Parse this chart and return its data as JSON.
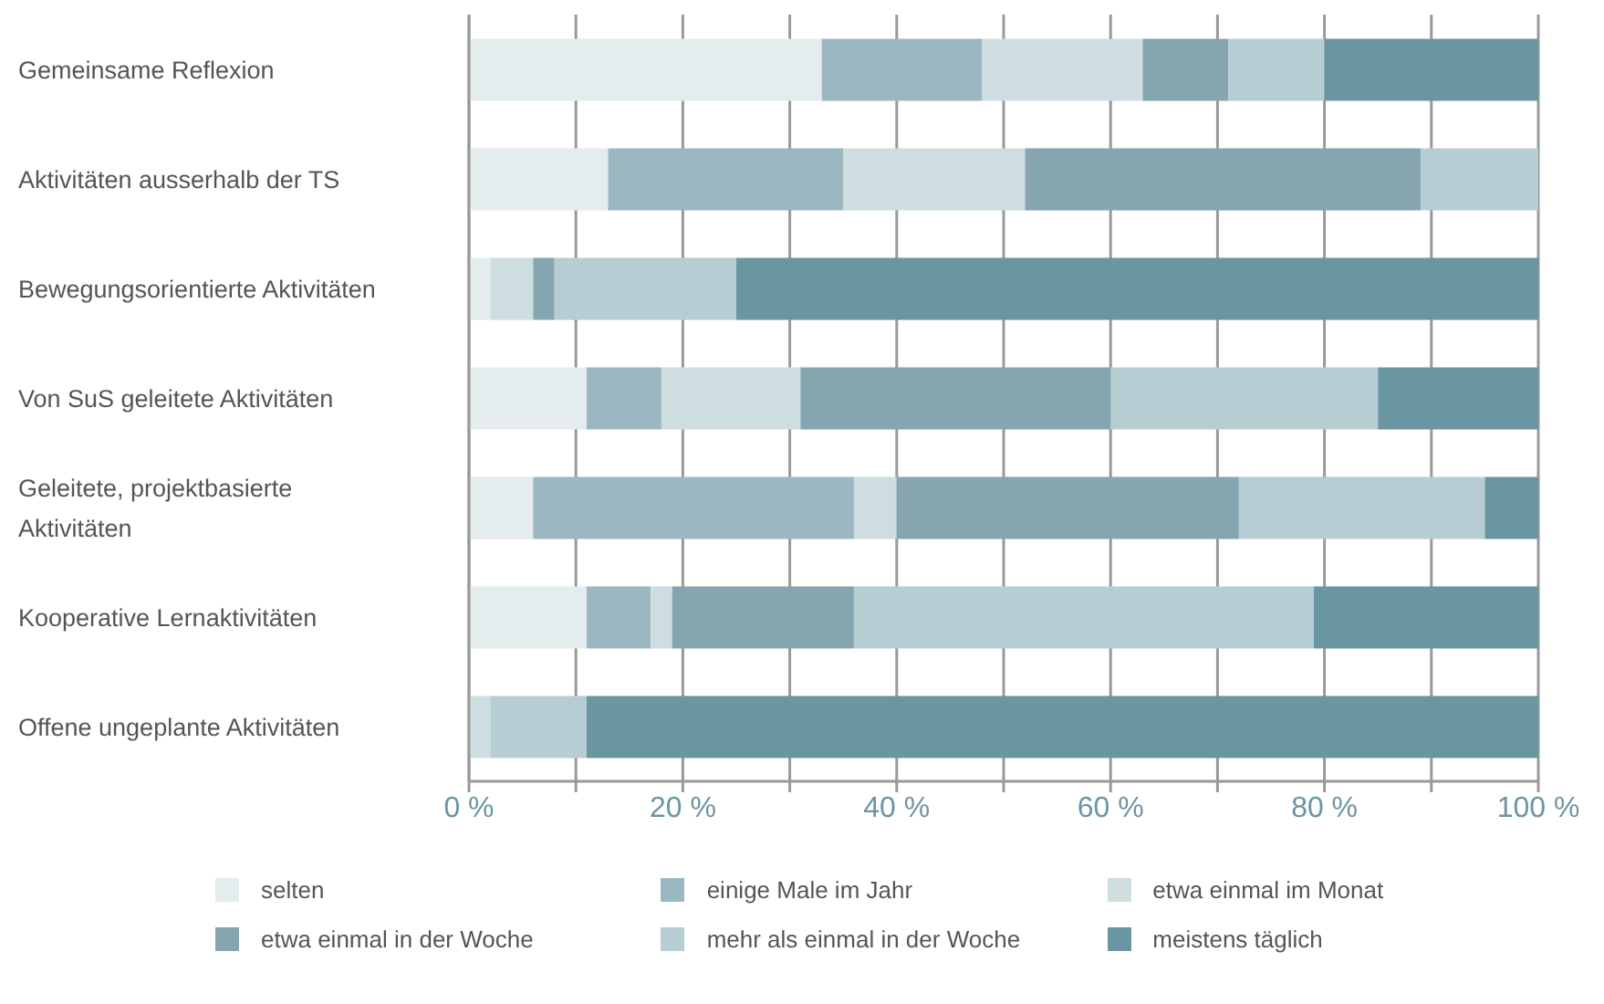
{
  "chart_data": {
    "type": "bar",
    "orientation": "horizontal",
    "stacked": true,
    "categories": [
      "Gemeinsame Reflexion",
      "Aktivitäten ausserhalb der TS",
      "Bewegungsorientierte Aktivitäten",
      "Von SuS geleitete Aktivitäten",
      "Geleitete, projektbasierte Aktivitäten",
      "Kooperative Lernaktivitäten",
      "Offene ungeplante Aktivitäten"
    ],
    "series": [
      {
        "name": "selten",
        "color": "#e4ecee",
        "values": [
          33,
          13,
          2,
          11,
          6,
          11,
          0
        ]
      },
      {
        "name": "einige Male im Jahr",
        "color": "#9bb8c2",
        "values": [
          15,
          22,
          0,
          7,
          30,
          6,
          0
        ]
      },
      {
        "name": "etwa einmal im Monat",
        "color": "#cddde0",
        "values": [
          15,
          17,
          4,
          13,
          4,
          2,
          2
        ]
      },
      {
        "name": "etwa einmal in der Woche",
        "color": "#85a6b0",
        "values": [
          8,
          37,
          2,
          29,
          32,
          17,
          0
        ]
      },
      {
        "name": "mehr als einmal in der Woche",
        "color": "#b6cdd3",
        "values": [
          9,
          11,
          17,
          25,
          23,
          43,
          9
        ]
      },
      {
        "name": "meistens täglich",
        "color": "#6a96a2",
        "values": [
          20,
          0,
          75,
          15,
          5,
          21,
          89
        ]
      }
    ],
    "xlim": [
      0,
      100
    ],
    "xticks": [
      {
        "value": 0,
        "label": "0 %"
      },
      {
        "value": 10,
        "label": null
      },
      {
        "value": 20,
        "label": "20 %"
      },
      {
        "value": 30,
        "label": null
      },
      {
        "value": 40,
        "label": "40 %"
      },
      {
        "value": 50,
        "label": null
      },
      {
        "value": 60,
        "label": "60 %"
      },
      {
        "value": 70,
        "label": null
      },
      {
        "value": 80,
        "label": "80 %"
      },
      {
        "value": 90,
        "label": null
      },
      {
        "value": 100,
        "label": "100 %"
      }
    ],
    "grid": "x",
    "legend": "bottom"
  }
}
